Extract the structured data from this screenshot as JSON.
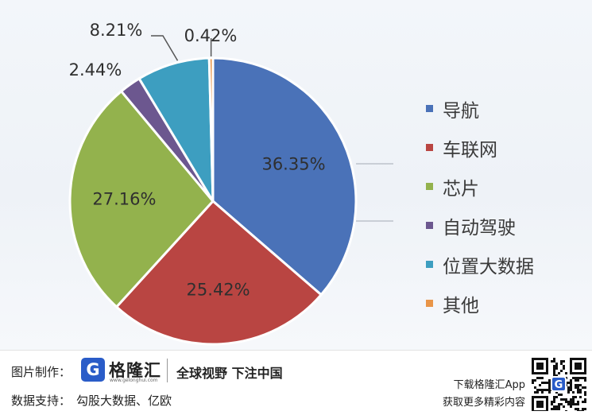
{
  "chart_data": {
    "type": "pie",
    "slices": [
      {
        "label": "导航",
        "value": 36.35,
        "value_label": "36.35%",
        "color": "#4a72b8"
      },
      {
        "label": "车联网",
        "value": 25.42,
        "value_label": "25.42%",
        "color": "#b94542"
      },
      {
        "label": "芯片",
        "value": 27.16,
        "value_label": "27.16%",
        "color": "#93b24d"
      },
      {
        "label": "自动驾驶",
        "value": 2.44,
        "value_label": "2.44%",
        "color": "#6c578f"
      },
      {
        "label": "位置大数据",
        "value": 8.21,
        "value_label": "8.21%",
        "color": "#3d9ec0"
      },
      {
        "label": "其他",
        "value": 0.42,
        "value_label": "0.42%",
        "color": "#e99548"
      }
    ],
    "legend_position": "right"
  },
  "footer": {
    "credit_label": "图片制作：",
    "logo_glyph": "G",
    "logo_text": "格隆汇",
    "logo_url": "www.gelonghui.com",
    "slogan": "全球视野 下注中国",
    "data_label": "数据支持：",
    "data_value": "勾股大数据、亿欧",
    "promo_line1": "下载格隆汇App",
    "promo_line2": "获取更多精彩内容",
    "qr_badge": "G"
  }
}
